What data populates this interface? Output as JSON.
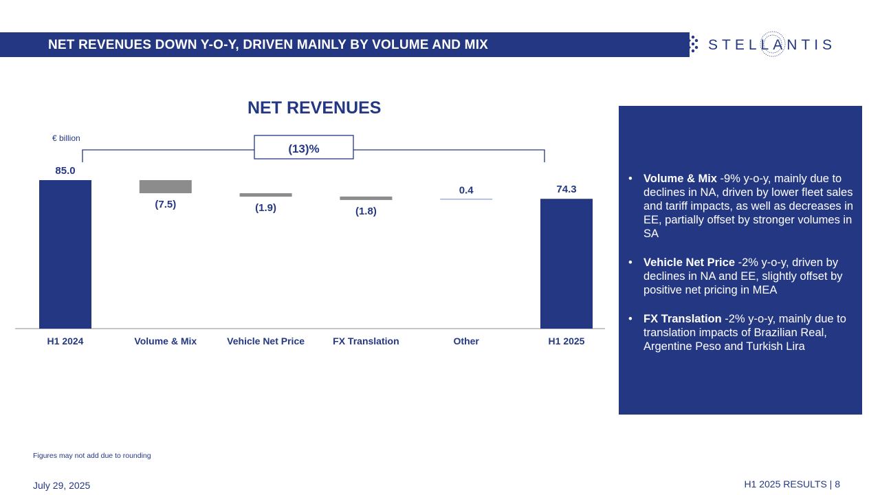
{
  "header": {
    "title": "NET REVENUES DOWN Y-O-Y,  DRIVEN MAINLY BY VOLUME AND MIX",
    "logo_text": "STELLANTIS"
  },
  "colors": {
    "brand_navy": "#243782",
    "negative_gray": "#8c8c8c",
    "positive_line": "#9fb0d8"
  },
  "chart_data": {
    "type": "bar",
    "subtype": "waterfall",
    "title": "NET REVENUES",
    "unit_label": "€ billion",
    "categories": [
      "H1 2024",
      "Volume & Mix",
      "Vehicle Net Price",
      "FX Translation",
      "Other",
      "H1 2025"
    ],
    "values": [
      85.0,
      -7.5,
      -1.9,
      -1.8,
      0.4,
      74.3
    ],
    "bar_kinds": [
      "total",
      "delta",
      "delta",
      "delta",
      "delta",
      "total"
    ],
    "data_labels": [
      "85.0",
      "(7.5)",
      "(1.9)",
      "(1.8)",
      "0.4",
      "74.3"
    ],
    "bracket_label": "(13)%",
    "ylim": [
      0,
      90
    ],
    "grid": false
  },
  "panel": {
    "bullets": [
      {
        "bold": "Volume & Mix",
        "text": " -9% y-o-y, mainly due to declines in NA, driven by lower fleet sales and tariff impacts, as well as decreases in EE, partially offset by stronger volumes in SA"
      },
      {
        "bold": "Vehicle Net Price",
        "text": " -2% y-o-y, driven by declines in NA and EE, slightly offset by positive net pricing in MEA"
      },
      {
        "bold": "FX Translation",
        "text": " -2% y-o-y, mainly due to translation impacts of Brazilian Real, Argentine Peso and Turkish Lira"
      }
    ]
  },
  "footer": {
    "footnote": "Figures may not add due to rounding",
    "date": "July 29, 2025",
    "right": "H1 2025 RESULTS  |  8"
  }
}
